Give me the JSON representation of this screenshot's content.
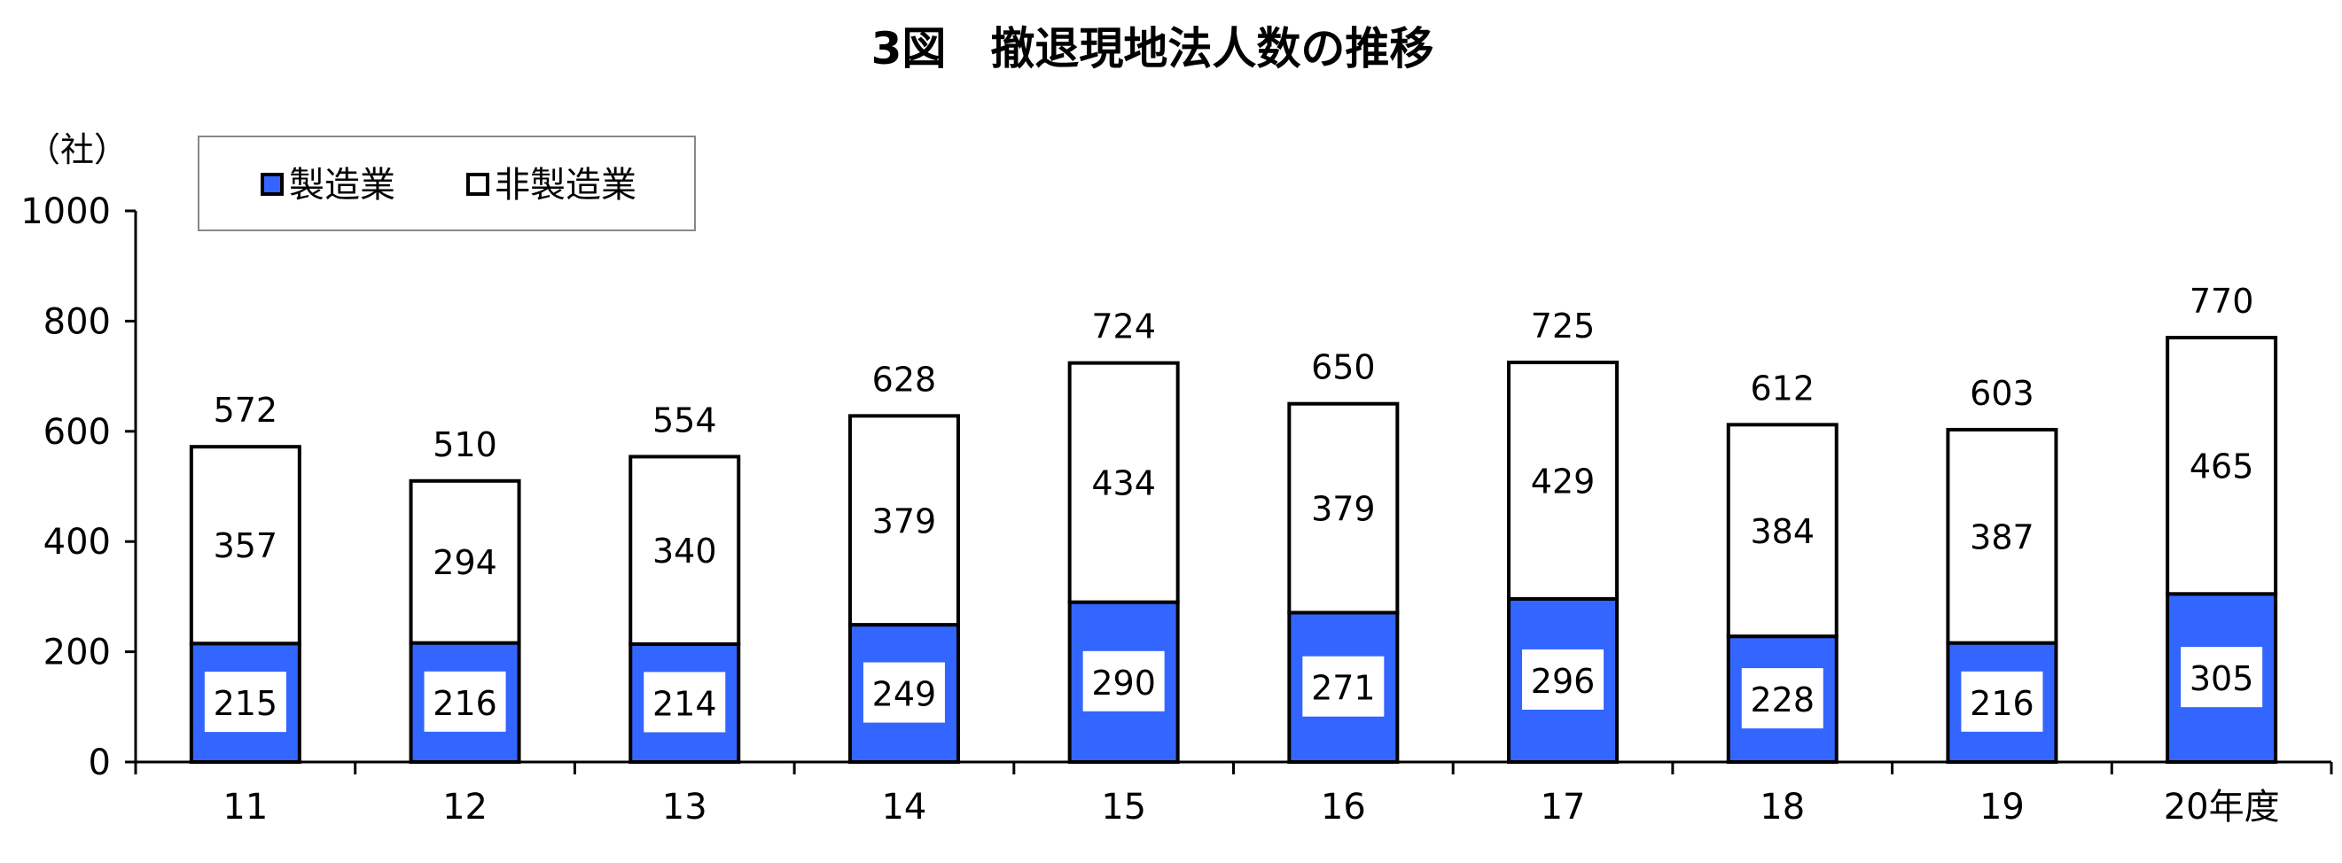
{
  "chart_data": {
    "type": "bar",
    "stacked": true,
    "title": "3図　撤退現地法人数の推移",
    "ylabel": "（社）",
    "xlabel": "",
    "categories": [
      "11",
      "12",
      "13",
      "14",
      "15",
      "16",
      "17",
      "18",
      "19",
      "20年度"
    ],
    "series": [
      {
        "name": "製造業",
        "color": "#3366ff",
        "values": [
          215,
          216,
          214,
          249,
          290,
          271,
          296,
          228,
          216,
          305
        ]
      },
      {
        "name": "非製造業",
        "color": "#ffffff",
        "values": [
          357,
          294,
          340,
          379,
          434,
          379,
          429,
          384,
          387,
          465
        ]
      }
    ],
    "totals": [
      572,
      510,
      554,
      628,
      724,
      650,
      725,
      612,
      603,
      770
    ],
    "ylim": [
      0,
      1000
    ],
    "yticks": [
      0,
      200,
      400,
      600,
      800,
      1000
    ],
    "grid": false,
    "legend_position": "top-left"
  }
}
